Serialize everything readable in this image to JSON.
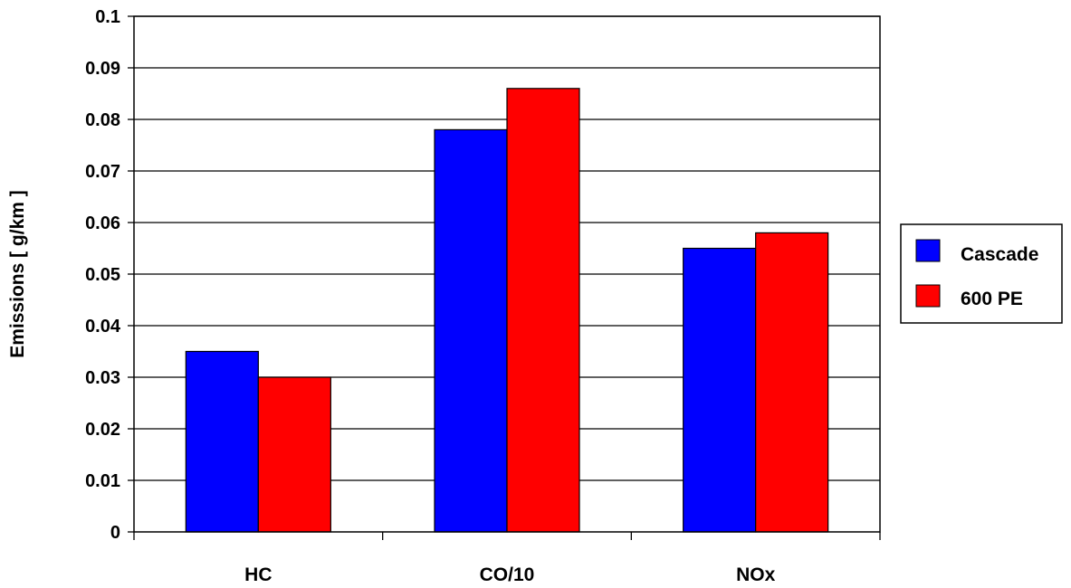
{
  "chart_data": {
    "type": "bar",
    "categories": [
      "HC",
      "CO/10",
      "NOx"
    ],
    "series": [
      {
        "name": "Cascade",
        "color": "#0000ff",
        "values": [
          0.035,
          0.078,
          0.055
        ]
      },
      {
        "name": "600 PE",
        "color": "#ff0000",
        "values": [
          0.03,
          0.086,
          0.058
        ]
      }
    ],
    "title": "",
    "xlabel": "",
    "ylabel": "Emissions [ g/km ]",
    "ylim": [
      0,
      0.1
    ],
    "yticks": [
      "0",
      "0.01",
      "0.02",
      "0.03",
      "0.04",
      "0.05",
      "0.06",
      "0.07",
      "0.08",
      "0.09",
      "0.1"
    ],
    "grid": true,
    "legend_position": "right"
  }
}
